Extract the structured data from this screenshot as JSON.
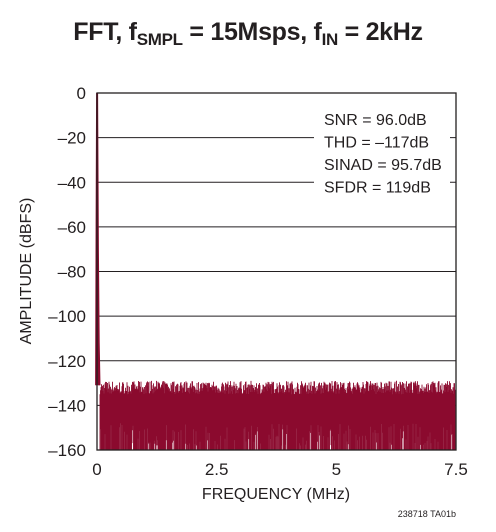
{
  "title": {
    "prefix": "FFT, f",
    "sub1": "SMPL",
    "mid": " = 15Msps, f",
    "sub2": "IN",
    "suffix": " = 2kHz"
  },
  "chart_data": {
    "type": "line",
    "xlabel": "FREQUENCY (MHz)",
    "ylabel": "AMPLITUDE (dBFS)",
    "xlim": [
      0,
      7.5
    ],
    "ylim": [
      -160,
      0
    ],
    "x_ticks": [
      0,
      2.5,
      5,
      7.5
    ],
    "x_tick_labels": [
      "0",
      "2.5",
      "5",
      "7.5"
    ],
    "y_ticks": [
      0,
      -20,
      -40,
      -60,
      -80,
      -100,
      -120,
      -140,
      -160
    ],
    "y_tick_labels": [
      "0",
      "–20",
      "–40",
      "–60",
      "–80",
      "–100",
      "–120",
      "–140",
      "–160"
    ],
    "grid": "horizontal",
    "series": [
      {
        "color": "#8b0a2e",
        "peak": {
          "x": 0.002,
          "y": 0
        },
        "noise_floor_top": -132,
        "noise_floor_bottom": -160
      }
    ],
    "annotations": [
      "SNR = 96.0dB",
      "THD = –117dB",
      "SINAD = 95.7dB",
      "SFDR = 119dB"
    ]
  },
  "footnote": "238718 TA01b"
}
